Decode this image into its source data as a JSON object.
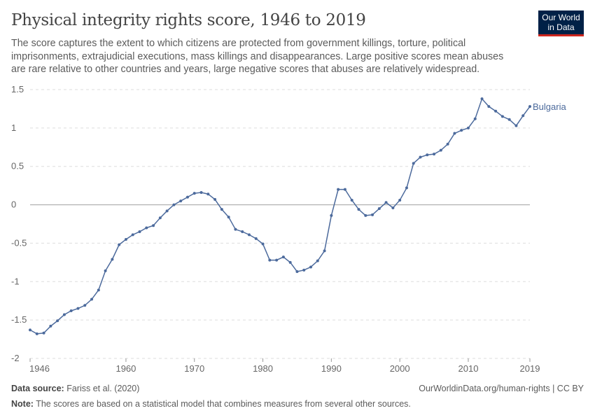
{
  "header": {
    "title": "Physical integrity rights score, 1946 to 2019",
    "subtitle": "The score captures the extent to which citizens are protected from government killings, torture, political imprisonments, extrajudicial executions, mass killings and disappearances. Large positive scores mean abuses are rare relative to other countries and years, large negative scores that abuses are relatively widespread.",
    "logo_line1": "Our World",
    "logo_line2": "in Data"
  },
  "footer": {
    "source_label": "Data source:",
    "source": "Fariss et al. (2020)",
    "url": "OurWorldinData.org/human-rights | CC BY",
    "note_label": "Note:",
    "note": "The scores are based on a statistical model that combines measures from several other sources."
  },
  "chart_data": {
    "type": "line",
    "title": "Physical integrity rights score, 1946 to 2019",
    "xlim": [
      1946,
      2019
    ],
    "ylim": [
      -2,
      1.5
    ],
    "x_ticks": [
      1946,
      1960,
      1970,
      1980,
      1990,
      2000,
      2010,
      2019
    ],
    "y_ticks": [
      -2,
      -1.5,
      -1,
      -0.5,
      0,
      0.5,
      1,
      1.5
    ],
    "y_tick_labels": [
      "-2",
      "-1.5",
      "-1",
      "-0.5",
      "0",
      "0.5",
      "1",
      "1.5"
    ],
    "grid": "horizontal dashed",
    "colors": {
      "series": "#4c6a9c",
      "zero_line": "#a1a1a1",
      "grid": "#dddddd"
    },
    "x": [
      1946,
      1947,
      1948,
      1949,
      1950,
      1951,
      1952,
      1953,
      1954,
      1955,
      1956,
      1957,
      1958,
      1959,
      1960,
      1961,
      1962,
      1963,
      1964,
      1965,
      1966,
      1967,
      1968,
      1969,
      1970,
      1971,
      1972,
      1973,
      1974,
      1975,
      1976,
      1977,
      1978,
      1979,
      1980,
      1981,
      1982,
      1983,
      1984,
      1985,
      1986,
      1987,
      1988,
      1989,
      1990,
      1991,
      1992,
      1993,
      1994,
      1995,
      1996,
      1997,
      1998,
      1999,
      2000,
      2001,
      2002,
      2003,
      2004,
      2005,
      2006,
      2007,
      2008,
      2009,
      2010,
      2011,
      2012,
      2013,
      2014,
      2015,
      2016,
      2017,
      2018,
      2019
    ],
    "series": [
      {
        "name": "Bulgaria",
        "values": [
          -1.63,
          -1.68,
          -1.67,
          -1.58,
          -1.51,
          -1.43,
          -1.38,
          -1.35,
          -1.31,
          -1.23,
          -1.11,
          -0.86,
          -0.71,
          -0.52,
          -0.45,
          -0.39,
          -0.35,
          -0.3,
          -0.27,
          -0.17,
          -0.08,
          0.0,
          0.05,
          0.1,
          0.15,
          0.16,
          0.14,
          0.07,
          -0.06,
          -0.16,
          -0.32,
          -0.35,
          -0.39,
          -0.44,
          -0.51,
          -0.72,
          -0.72,
          -0.68,
          -0.75,
          -0.87,
          -0.85,
          -0.81,
          -0.73,
          -0.6,
          -0.14,
          0.2,
          0.2,
          0.06,
          -0.06,
          -0.14,
          -0.13,
          -0.05,
          0.03,
          -0.04,
          0.06,
          0.22,
          0.54,
          0.62,
          0.65,
          0.66,
          0.71,
          0.79,
          0.93,
          0.97,
          1.0,
          1.12,
          1.38,
          1.28,
          1.22,
          1.15,
          1.11,
          1.03,
          1.16,
          1.28
        ]
      }
    ]
  }
}
